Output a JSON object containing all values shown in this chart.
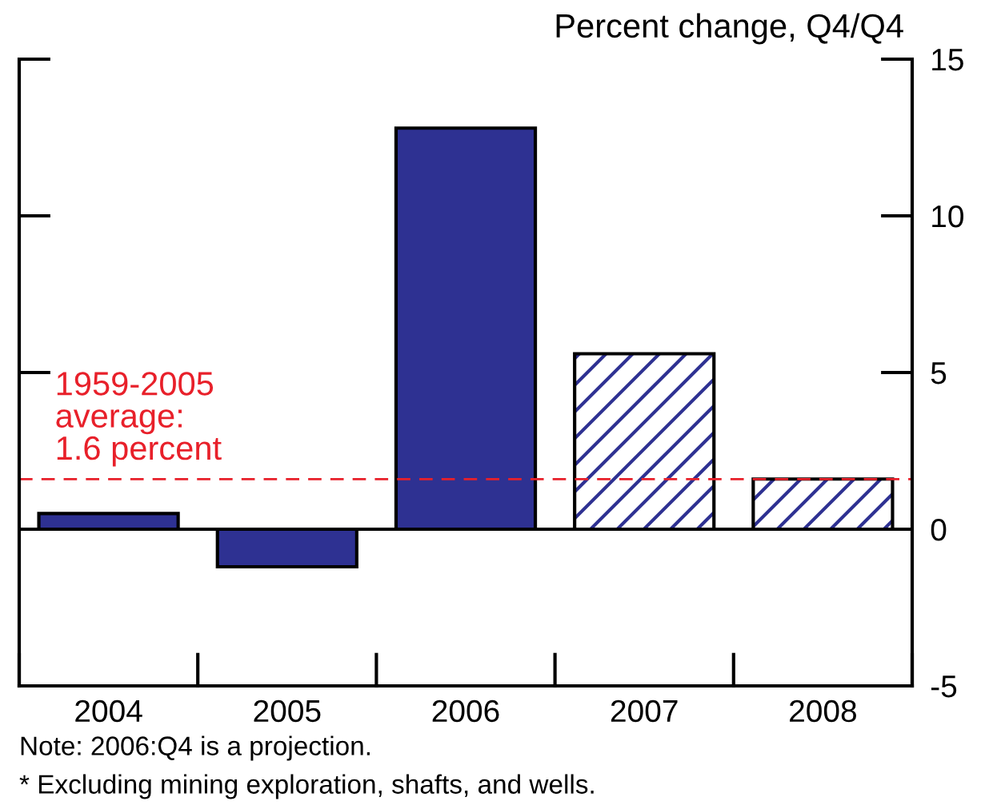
{
  "chart_data": {
    "type": "bar",
    "ylabel": "Percent change, Q4/Q4",
    "categories": [
      "2004",
      "2005",
      "2006",
      "2007",
      "2008"
    ],
    "series": [
      {
        "color": "#2e3192",
        "values": [
          0.5,
          -1.2,
          12.8,
          null,
          null
        ]
      },
      {
        "color": "#2e3192",
        "values": [
          null,
          null,
          null,
          5.6,
          1.6
        ]
      }
    ],
    "ylim": [
      -5,
      15
    ],
    "yticks": [
      -5,
      0,
      5,
      10,
      15
    ],
    "ref_lines": [
      {
        "axis": "y",
        "value": 1.6,
        "label": "1959-2005\naverage:\n1.6 percent",
        "color": "#e8202a",
        "line_style": "dashed"
      }
    ],
    "annotations": [
      "Note: 2006:Q4 is a projection.",
      "* Excluding mining exploration, shafts, and wells."
    ],
    "legend": false
  }
}
